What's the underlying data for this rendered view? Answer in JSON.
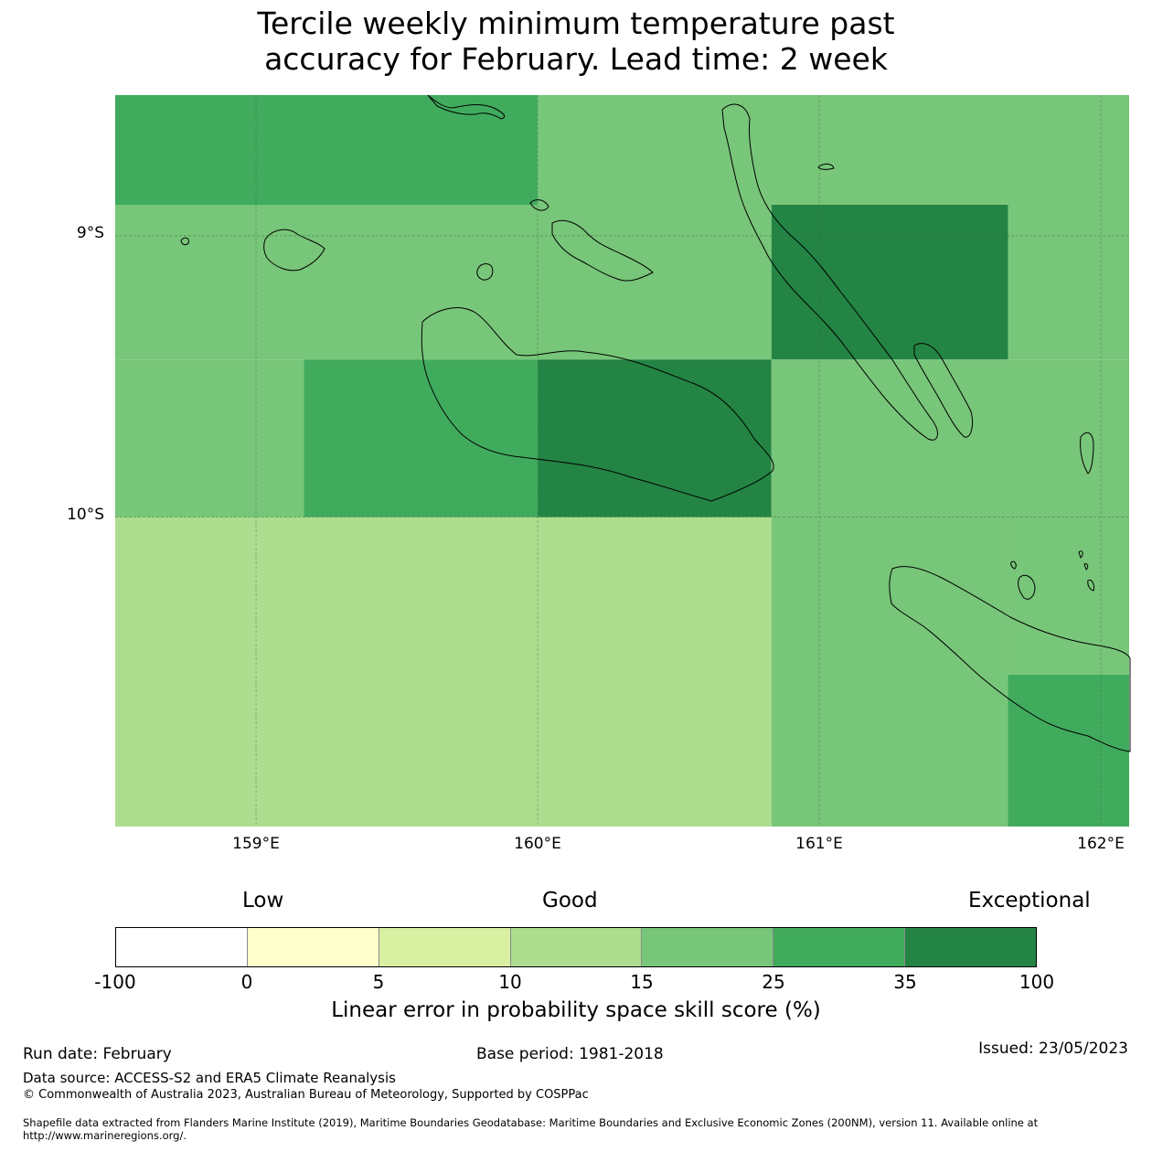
{
  "title": {
    "line1": "Tercile weekly minimum temperature past",
    "line2": "accuracy for February. Lead time: 2 week"
  },
  "map": {
    "lat_labels": [
      "9°S",
      "10°S"
    ],
    "lon_labels": [
      "159°E",
      "160°E",
      "161°E",
      "162°E"
    ],
    "lat_ticks": [
      -9,
      -10
    ],
    "lon_ticks": [
      159,
      160,
      161,
      162
    ],
    "extent": {
      "lon_min": 158.5,
      "lon_max": 162.1,
      "lat_min": -11.1,
      "lat_max": -8.5
    },
    "cells": [
      {
        "lon": [
          158.5,
          160.0
        ],
        "lat": [
          -8.89,
          -8.5
        ],
        "score_class": "25-35"
      },
      {
        "lon": [
          160.0,
          162.1
        ],
        "lat": [
          -8.89,
          -8.5
        ],
        "score_class": "15-25"
      },
      {
        "lon": [
          158.5,
          160.83
        ],
        "lat": [
          -9.44,
          -8.89
        ],
        "score_class": "15-25"
      },
      {
        "lon": [
          160.83,
          161.67
        ],
        "lat": [
          -9.44,
          -8.89
        ],
        "score_class": "35-100"
      },
      {
        "lon": [
          161.67,
          162.1
        ],
        "lat": [
          -9.44,
          -8.89
        ],
        "score_class": "15-25"
      },
      {
        "lon": [
          158.5,
          159.17
        ],
        "lat": [
          -10.0,
          -9.44
        ],
        "score_class": "15-25"
      },
      {
        "lon": [
          159.17,
          160.0
        ],
        "lat": [
          -10.0,
          -9.44
        ],
        "score_class": "25-35"
      },
      {
        "lon": [
          160.0,
          160.83
        ],
        "lat": [
          -10.0,
          -9.44
        ],
        "score_class": "35-100"
      },
      {
        "lon": [
          160.83,
          162.1
        ],
        "lat": [
          -10.0,
          -9.44
        ],
        "score_class": "15-25"
      },
      {
        "lon": [
          158.5,
          160.83
        ],
        "lat": [
          -11.1,
          -10.0
        ],
        "score_class": "10-15"
      },
      {
        "lon": [
          160.83,
          161.67
        ],
        "lat": [
          -11.1,
          -10.0
        ],
        "score_class": "15-25"
      },
      {
        "lon": [
          161.67,
          162.1
        ],
        "lat": [
          -10.56,
          -10.0
        ],
        "score_class": "15-25"
      },
      {
        "lon": [
          161.67,
          162.1
        ],
        "lat": [
          -11.1,
          -10.56
        ],
        "score_class": "25-35"
      }
    ]
  },
  "legend": {
    "categories": {
      "low": "Low",
      "good": "Good",
      "exceptional": "Exceptional"
    },
    "ticks": [
      "-100",
      "0",
      "5",
      "10",
      "15",
      "25",
      "35",
      "100"
    ],
    "classes": [
      {
        "range": "-100-0",
        "color": "#ffffff"
      },
      {
        "range": "0-5",
        "color": "#ffffcc"
      },
      {
        "range": "5-10",
        "color": "#d9f0a3"
      },
      {
        "range": "10-15",
        "color": "#addd8e"
      },
      {
        "range": "15-25",
        "color": "#78c679"
      },
      {
        "range": "25-35",
        "color": "#41ab5d"
      },
      {
        "range": "35-100",
        "color": "#238443"
      }
    ],
    "caption": "Linear error in probability space skill score (%)"
  },
  "footer": {
    "run_date": "Run date: February",
    "base_period": "Base period: 1981-2018",
    "issued": "Issued: 23/05/2023",
    "data_source": "Data source: ACCESS-S2 and ERA5 Climate Reanalysis",
    "copyright": "© Commonwealth of Australia 2023, Australian Bureau of Meteorology, Supported by COSPPac",
    "shapefile": "Shapefile data extracted from Flanders Marine Institute (2019), Maritime Boundaries Geodatabase: Maritime Boundaries and Exclusive Economic Zones (200NM), version 11. Available online at http://www.marineregions.org/."
  }
}
